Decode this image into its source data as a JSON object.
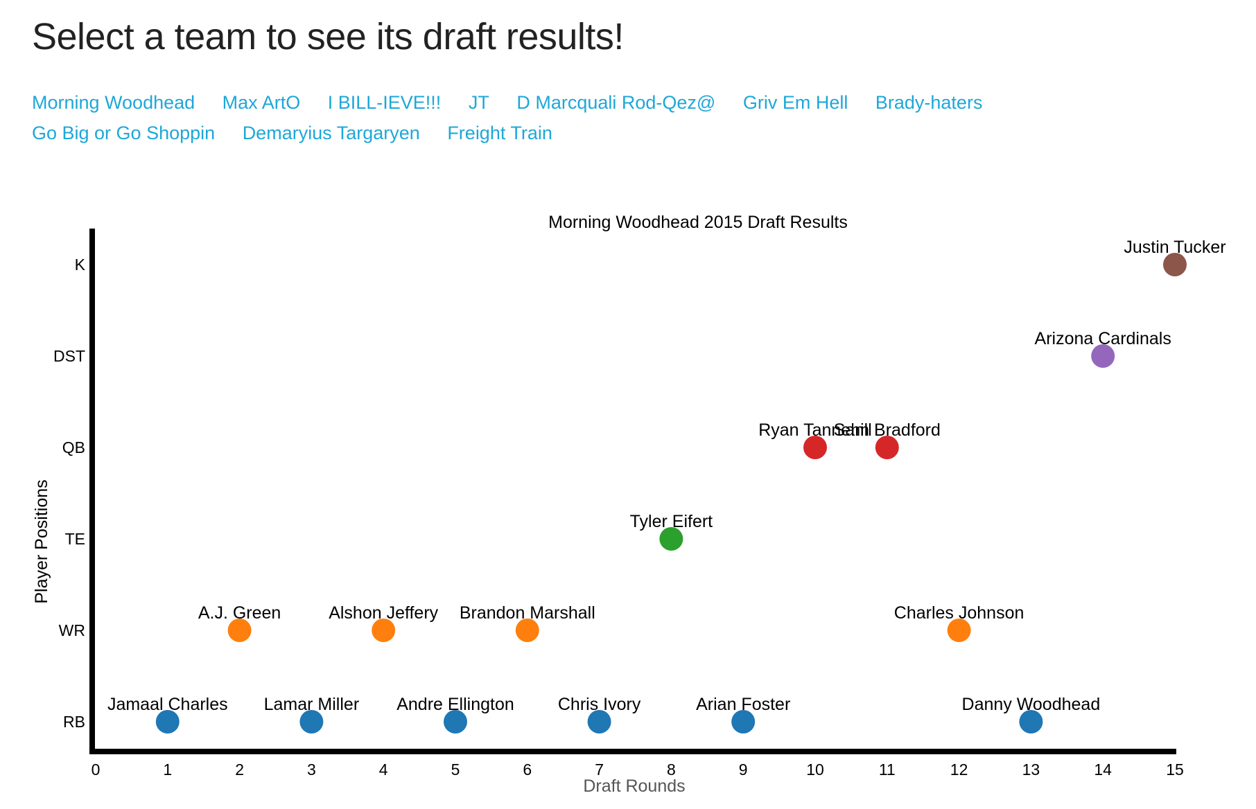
{
  "page": {
    "title": "Select a team to see its draft results!"
  },
  "teams": [
    {
      "label": "Morning Woodhead"
    },
    {
      "label": "Max ArtO"
    },
    {
      "label": "I BILL-IEVE!!!"
    },
    {
      "label": "JT"
    },
    {
      "label": "D Marcquali Rod-Qez@"
    },
    {
      "label": "Griv Em Hell"
    },
    {
      "label": "Brady-haters"
    },
    {
      "label": "Go Big or Go Shoppin"
    },
    {
      "label": "Demaryius Targaryen"
    },
    {
      "label": "Freight Train"
    }
  ],
  "colors": {
    "link": "#1ea7d8",
    "axis": "#000000"
  },
  "chart_data": {
    "type": "scatter",
    "title": "Morning Woodhead 2015 Draft Results",
    "xlabel": "Draft Rounds",
    "ylabel": "Player Positions",
    "xlim": [
      0,
      15
    ],
    "x_ticks": [
      "0",
      "1",
      "2",
      "3",
      "4",
      "5",
      "6",
      "7",
      "8",
      "9",
      "10",
      "11",
      "12",
      "13",
      "14",
      "15"
    ],
    "y_categories": [
      "RB",
      "WR",
      "TE",
      "QB",
      "DST",
      "K"
    ],
    "position_colors": {
      "RB": "#1f77b4",
      "WR": "#ff7f0e",
      "TE": "#2ca02c",
      "QB": "#d62728",
      "DST": "#9467bd",
      "K": "#8c564b"
    },
    "points": [
      {
        "round": 1,
        "position": "RB",
        "player": "Jamaal Charles"
      },
      {
        "round": 2,
        "position": "WR",
        "player": "A.J. Green"
      },
      {
        "round": 3,
        "position": "RB",
        "player": "Lamar Miller"
      },
      {
        "round": 4,
        "position": "WR",
        "player": "Alshon Jeffery"
      },
      {
        "round": 5,
        "position": "RB",
        "player": "Andre Ellington"
      },
      {
        "round": 6,
        "position": "WR",
        "player": "Brandon Marshall"
      },
      {
        "round": 7,
        "position": "RB",
        "player": "Chris Ivory"
      },
      {
        "round": 8,
        "position": "TE",
        "player": "Tyler Eifert"
      },
      {
        "round": 9,
        "position": "RB",
        "player": "Arian Foster"
      },
      {
        "round": 10,
        "position": "QB",
        "player": "Ryan Tannehill"
      },
      {
        "round": 11,
        "position": "QB",
        "player": "Sam Bradford"
      },
      {
        "round": 12,
        "position": "WR",
        "player": "Charles Johnson"
      },
      {
        "round": 13,
        "position": "RB",
        "player": "Danny Woodhead"
      },
      {
        "round": 14,
        "position": "DST",
        "player": "Arizona Cardinals"
      },
      {
        "round": 15,
        "position": "K",
        "player": "Justin Tucker"
      }
    ]
  }
}
